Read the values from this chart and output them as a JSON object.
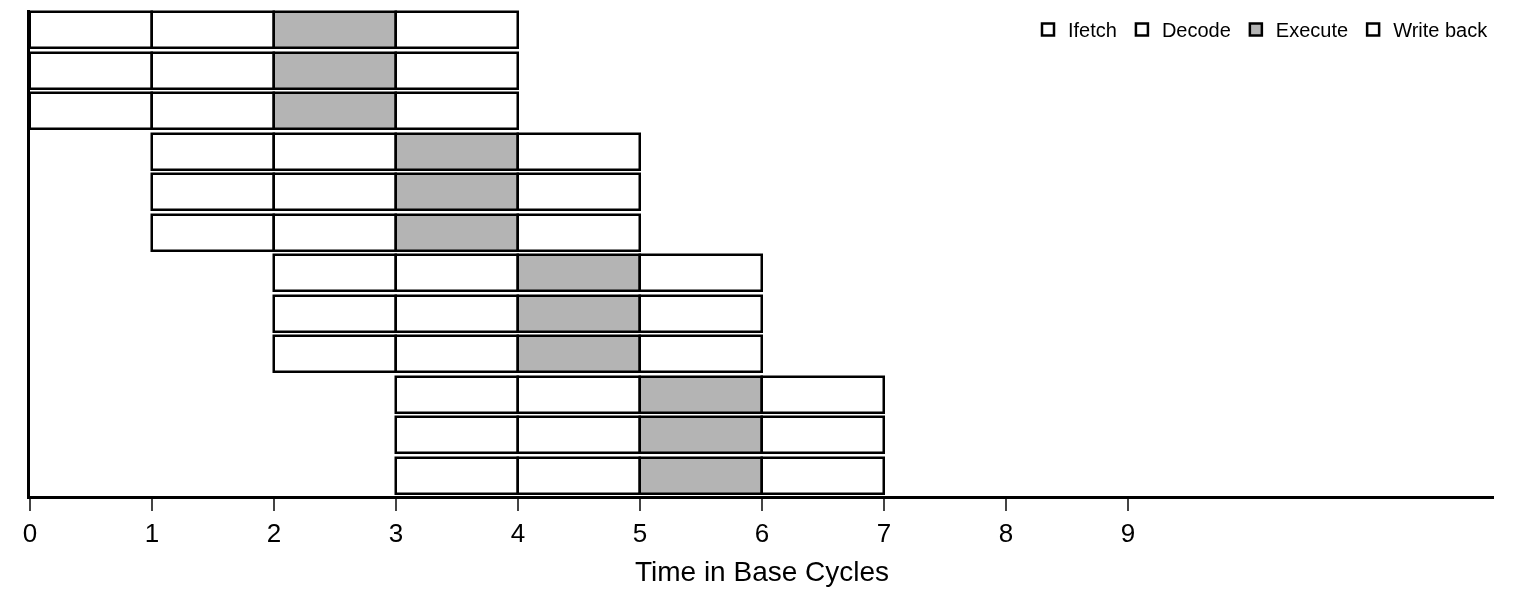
{
  "chart_data": {
    "type": "bar",
    "orientation": "horizontal",
    "xlabel": "Time in Base Cycles",
    "categories": [
      null,
      null,
      null,
      null,
      null,
      null,
      null,
      null,
      null,
      null,
      null,
      null
    ],
    "series": [
      {
        "name": "Ifetch",
        "color": "#ffffff",
        "base": [
          0,
          0,
          0,
          1,
          1,
          1,
          2,
          2,
          2,
          3,
          3,
          3
        ],
        "values": [
          1,
          1,
          1,
          1,
          1,
          1,
          1,
          1,
          1,
          1,
          1,
          1
        ]
      },
      {
        "name": "Decode",
        "color": "#ffffff",
        "base": [
          1,
          1,
          1,
          2,
          2,
          2,
          3,
          3,
          3,
          4,
          4,
          4
        ],
        "values": [
          1,
          1,
          1,
          1,
          1,
          1,
          1,
          1,
          1,
          1,
          1,
          1
        ]
      },
      {
        "name": "Execute",
        "color": "#b4b4b4",
        "base": [
          2,
          2,
          2,
          3,
          3,
          3,
          4,
          4,
          4,
          5,
          5,
          5
        ],
        "values": [
          1,
          1,
          1,
          1,
          1,
          1,
          1,
          1,
          1,
          1,
          1,
          1
        ]
      },
      {
        "name": "Write back",
        "color": "#ffffff",
        "base": [
          3,
          3,
          3,
          4,
          4,
          4,
          5,
          5,
          5,
          6,
          6,
          6
        ],
        "values": [
          1,
          1,
          1,
          1,
          1,
          1,
          1,
          1,
          1,
          1,
          1,
          1
        ]
      }
    ],
    "xlim": [
      0,
      12
    ],
    "xticks": [
      0,
      1,
      2,
      3,
      4,
      5,
      6,
      7,
      8,
      9
    ],
    "tick_labels": "x",
    "legend": "top right"
  }
}
